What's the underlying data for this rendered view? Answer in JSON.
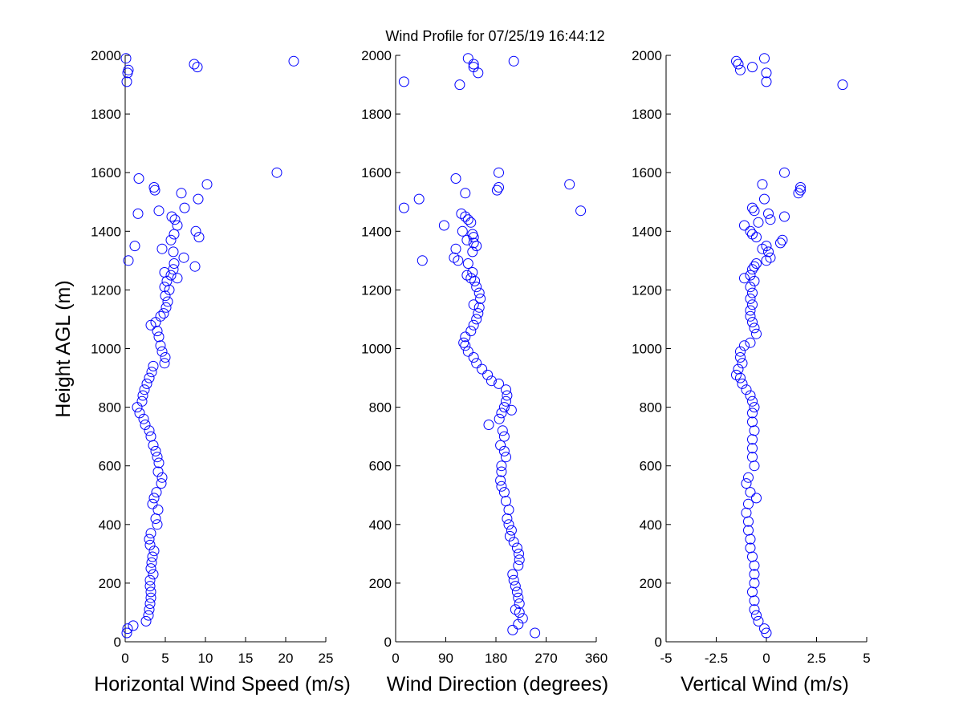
{
  "figure": {
    "title": "Wind Profile for  07/25/19 16:44:12",
    "ylabel": "Height AGL (m)",
    "marker_color": "#0000ff"
  },
  "chart_data": [
    {
      "type": "scatter",
      "xlabel": "Horizontal Wind Speed (m/s)",
      "ylabel": "Height AGL (m)",
      "xlim": [
        0,
        25
      ],
      "ylim": [
        0,
        2000
      ],
      "xticks": [
        0,
        5,
        10,
        15,
        20,
        25
      ],
      "xtick_labels": [
        "0",
        "5",
        "10",
        "15",
        "20",
        "25"
      ],
      "yticks": [
        0,
        200,
        400,
        600,
        800,
        1000,
        1200,
        1400,
        1600,
        1800,
        2000
      ],
      "ytick_labels": [
        "0",
        "200",
        "400",
        "600",
        "800",
        "1000",
        "1200",
        "1400",
        "1600",
        "1800",
        "2000"
      ],
      "marker": "circle-open",
      "grid": false,
      "points": [
        [
          0.2,
          30
        ],
        [
          0.3,
          45
        ],
        [
          1.0,
          55
        ],
        [
          2.6,
          70
        ],
        [
          2.9,
          90
        ],
        [
          3.0,
          110
        ],
        [
          3.1,
          130
        ],
        [
          3.2,
          150
        ],
        [
          3.2,
          170
        ],
        [
          3.1,
          190
        ],
        [
          3.1,
          210
        ],
        [
          3.5,
          230
        ],
        [
          3.2,
          250
        ],
        [
          3.3,
          270
        ],
        [
          3.4,
          290
        ],
        [
          3.6,
          310
        ],
        [
          3.1,
          330
        ],
        [
          3.0,
          350
        ],
        [
          3.2,
          370
        ],
        [
          4.0,
          400
        ],
        [
          3.8,
          420
        ],
        [
          4.1,
          450
        ],
        [
          3.4,
          470
        ],
        [
          3.6,
          490
        ],
        [
          3.9,
          510
        ],
        [
          4.5,
          540
        ],
        [
          4.6,
          560
        ],
        [
          4.1,
          580
        ],
        [
          4.2,
          610
        ],
        [
          4.0,
          630
        ],
        [
          3.8,
          650
        ],
        [
          3.5,
          670
        ],
        [
          3.2,
          700
        ],
        [
          3.0,
          720
        ],
        [
          2.5,
          740
        ],
        [
          2.3,
          760
        ],
        [
          1.8,
          780
        ],
        [
          1.5,
          800
        ],
        [
          2.1,
          820
        ],
        [
          2.2,
          840
        ],
        [
          2.4,
          860
        ],
        [
          2.7,
          880
        ],
        [
          3.0,
          900
        ],
        [
          3.3,
          920
        ],
        [
          3.5,
          940
        ],
        [
          4.9,
          950
        ],
        [
          5.0,
          970
        ],
        [
          4.6,
          990
        ],
        [
          4.4,
          1010
        ],
        [
          4.2,
          1040
        ],
        [
          4.0,
          1060
        ],
        [
          3.2,
          1080
        ],
        [
          3.8,
          1090
        ],
        [
          4.4,
          1110
        ],
        [
          4.8,
          1120
        ],
        [
          5.1,
          1140
        ],
        [
          5.3,
          1160
        ],
        [
          5.0,
          1180
        ],
        [
          5.5,
          1200
        ],
        [
          4.9,
          1210
        ],
        [
          5.2,
          1230
        ],
        [
          6.5,
          1240
        ],
        [
          5.7,
          1250
        ],
        [
          4.9,
          1260
        ],
        [
          6.0,
          1270
        ],
        [
          8.7,
          1280
        ],
        [
          6.1,
          1290
        ],
        [
          7.3,
          1310
        ],
        [
          6.0,
          1330
        ],
        [
          4.6,
          1340
        ],
        [
          1.2,
          1350
        ],
        [
          5.7,
          1370
        ],
        [
          9.2,
          1380
        ],
        [
          6.1,
          1390
        ],
        [
          8.8,
          1400
        ],
        [
          6.5,
          1420
        ],
        [
          6.2,
          1440
        ],
        [
          5.8,
          1450
        ],
        [
          1.6,
          1460
        ],
        [
          4.2,
          1470
        ],
        [
          7.4,
          1480
        ],
        [
          9.1,
          1510
        ],
        [
          7.0,
          1530
        ],
        [
          3.7,
          1540
        ],
        [
          3.6,
          1550
        ],
        [
          10.2,
          1560
        ],
        [
          1.7,
          1580
        ],
        [
          18.9,
          1600
        ],
        [
          0.4,
          1300
        ],
        [
          0.2,
          1910
        ],
        [
          0.3,
          1940
        ],
        [
          0.4,
          1950
        ],
        [
          9.0,
          1960
        ],
        [
          8.6,
          1970
        ],
        [
          21.0,
          1980
        ],
        [
          0.1,
          1990
        ]
      ]
    },
    {
      "type": "scatter",
      "xlabel": "Wind Direction (degrees)",
      "ylabel": "",
      "xlim": [
        0,
        360
      ],
      "ylim": [
        0,
        2000
      ],
      "xticks": [
        0,
        90,
        180,
        270,
        360
      ],
      "xtick_labels": [
        "0",
        "90",
        "180",
        "270",
        "360"
      ],
      "yticks": [
        0,
        200,
        400,
        600,
        800,
        1000,
        1200,
        1400,
        1600,
        1800,
        2000
      ],
      "ytick_labels": [
        "0",
        "200",
        "400",
        "600",
        "800",
        "1000",
        "1200",
        "1400",
        "1600",
        "1800",
        "2000"
      ],
      "marker": "circle-open",
      "grid": false,
      "points": [
        [
          250,
          30
        ],
        [
          210,
          40
        ],
        [
          220,
          60
        ],
        [
          228,
          80
        ],
        [
          222,
          100
        ],
        [
          215,
          110
        ],
        [
          222,
          130
        ],
        [
          220,
          150
        ],
        [
          218,
          170
        ],
        [
          215,
          190
        ],
        [
          212,
          210
        ],
        [
          210,
          230
        ],
        [
          220,
          260
        ],
        [
          222,
          280
        ],
        [
          221,
          300
        ],
        [
          218,
          320
        ],
        [
          212,
          340
        ],
        [
          205,
          360
        ],
        [
          208,
          380
        ],
        [
          203,
          400
        ],
        [
          200,
          420
        ],
        [
          203,
          450
        ],
        [
          198,
          480
        ],
        [
          195,
          510
        ],
        [
          190,
          530
        ],
        [
          188,
          550
        ],
        [
          190,
          580
        ],
        [
          190,
          600
        ],
        [
          198,
          630
        ],
        [
          195,
          650
        ],
        [
          188,
          670
        ],
        [
          195,
          700
        ],
        [
          192,
          720
        ],
        [
          167,
          740
        ],
        [
          186,
          760
        ],
        [
          190,
          780
        ],
        [
          208,
          790
        ],
        [
          195,
          800
        ],
        [
          198,
          820
        ],
        [
          200,
          840
        ],
        [
          198,
          860
        ],
        [
          185,
          880
        ],
        [
          172,
          890
        ],
        [
          165,
          910
        ],
        [
          155,
          930
        ],
        [
          145,
          950
        ],
        [
          140,
          970
        ],
        [
          130,
          990
        ],
        [
          125,
          1010
        ],
        [
          122,
          1020
        ],
        [
          125,
          1040
        ],
        [
          135,
          1060
        ],
        [
          140,
          1080
        ],
        [
          145,
          1100
        ],
        [
          148,
          1120
        ],
        [
          150,
          1140
        ],
        [
          140,
          1150
        ],
        [
          152,
          1170
        ],
        [
          150,
          1190
        ],
        [
          145,
          1210
        ],
        [
          142,
          1230
        ],
        [
          135,
          1240
        ],
        [
          128,
          1250
        ],
        [
          138,
          1260
        ],
        [
          130,
          1290
        ],
        [
          112,
          1300
        ],
        [
          48,
          1300
        ],
        [
          105,
          1310
        ],
        [
          138,
          1330
        ],
        [
          108,
          1340
        ],
        [
          145,
          1350
        ],
        [
          140,
          1360
        ],
        [
          128,
          1370
        ],
        [
          140,
          1380
        ],
        [
          138,
          1390
        ],
        [
          120,
          1400
        ],
        [
          87,
          1420
        ],
        [
          135,
          1430
        ],
        [
          130,
          1440
        ],
        [
          125,
          1450
        ],
        [
          118,
          1460
        ],
        [
          332,
          1470
        ],
        [
          15,
          1480
        ],
        [
          42,
          1510
        ],
        [
          125,
          1530
        ],
        [
          182,
          1540
        ],
        [
          185,
          1550
        ],
        [
          312,
          1560
        ],
        [
          108,
          1580
        ],
        [
          185,
          1600
        ],
        [
          15,
          1910
        ],
        [
          115,
          1900
        ],
        [
          148,
          1940
        ],
        [
          140,
          1960
        ],
        [
          130,
          1990
        ],
        [
          212,
          1980
        ],
        [
          140,
          1970
        ]
      ]
    },
    {
      "type": "scatter",
      "xlabel": "Vertical Wind (m/s)",
      "ylabel": "",
      "xlim": [
        -5,
        5
      ],
      "ylim": [
        0,
        2000
      ],
      "xticks": [
        -5,
        -2.5,
        0,
        2.5,
        5
      ],
      "xtick_labels": [
        "-5",
        "-2.5",
        "0",
        "2.5",
        "5"
      ],
      "yticks": [
        0,
        200,
        400,
        600,
        800,
        1000,
        1200,
        1400,
        1600,
        1800,
        2000
      ],
      "ytick_labels": [
        "0",
        "200",
        "400",
        "600",
        "800",
        "1000",
        "1200",
        "1400",
        "1600",
        "1800",
        "2000"
      ],
      "marker": "circle-open",
      "grid": false,
      "points": [
        [
          0,
          30
        ],
        [
          -0.1,
          45
        ],
        [
          -0.4,
          70
        ],
        [
          -0.5,
          90
        ],
        [
          -0.6,
          110
        ],
        [
          -0.6,
          140
        ],
        [
          -0.7,
          170
        ],
        [
          -0.6,
          200
        ],
        [
          -0.6,
          230
        ],
        [
          -0.6,
          260
        ],
        [
          -0.7,
          290
        ],
        [
          -0.8,
          320
        ],
        [
          -0.8,
          350
        ],
        [
          -0.9,
          380
        ],
        [
          -0.9,
          410
        ],
        [
          -1.0,
          440
        ],
        [
          -0.9,
          470
        ],
        [
          -0.5,
          490
        ],
        [
          -0.8,
          510
        ],
        [
          -1.0,
          540
        ],
        [
          -0.9,
          560
        ],
        [
          -0.6,
          600
        ],
        [
          -0.7,
          630
        ],
        [
          -0.7,
          660
        ],
        [
          -0.7,
          690
        ],
        [
          -0.6,
          720
        ],
        [
          -0.7,
          750
        ],
        [
          -0.7,
          780
        ],
        [
          -0.6,
          800
        ],
        [
          -0.7,
          820
        ],
        [
          -0.8,
          840
        ],
        [
          -1.0,
          860
        ],
        [
          -1.2,
          880
        ],
        [
          -1.3,
          900
        ],
        [
          -1.5,
          910
        ],
        [
          -1.4,
          930
        ],
        [
          -1.2,
          950
        ],
        [
          -1.3,
          970
        ],
        [
          -1.3,
          990
        ],
        [
          -1.1,
          1010
        ],
        [
          -0.8,
          1020
        ],
        [
          -0.5,
          1050
        ],
        [
          -0.6,
          1070
        ],
        [
          -0.7,
          1090
        ],
        [
          -0.8,
          1110
        ],
        [
          -0.8,
          1130
        ],
        [
          -0.7,
          1150
        ],
        [
          -0.8,
          1170
        ],
        [
          -0.7,
          1190
        ],
        [
          -0.8,
          1210
        ],
        [
          -0.6,
          1230
        ],
        [
          -1.1,
          1240
        ],
        [
          -0.8,
          1250
        ],
        [
          -0.7,
          1270
        ],
        [
          -0.6,
          1280
        ],
        [
          -0.5,
          1290
        ],
        [
          0.0,
          1300
        ],
        [
          0.2,
          1310
        ],
        [
          0.1,
          1330
        ],
        [
          -0.2,
          1340
        ],
        [
          0.0,
          1350
        ],
        [
          0.7,
          1360
        ],
        [
          0.8,
          1370
        ],
        [
          -0.5,
          1380
        ],
        [
          -0.7,
          1390
        ],
        [
          -0.8,
          1400
        ],
        [
          -1.1,
          1420
        ],
        [
          -0.4,
          1430
        ],
        [
          0.2,
          1440
        ],
        [
          0.9,
          1450
        ],
        [
          0.1,
          1460
        ],
        [
          -0.6,
          1470
        ],
        [
          -0.7,
          1480
        ],
        [
          -0.1,
          1510
        ],
        [
          1.6,
          1530
        ],
        [
          1.7,
          1540
        ],
        [
          1.7,
          1550
        ],
        [
          -0.2,
          1560
        ],
        [
          0.9,
          1600
        ],
        [
          -1.3,
          1950
        ],
        [
          -1.4,
          1970
        ],
        [
          -1.5,
          1980
        ],
        [
          -0.7,
          1960
        ],
        [
          0,
          1940
        ],
        [
          0,
          1910
        ],
        [
          3.8,
          1900
        ],
        [
          -0.1,
          1990
        ]
      ]
    }
  ]
}
